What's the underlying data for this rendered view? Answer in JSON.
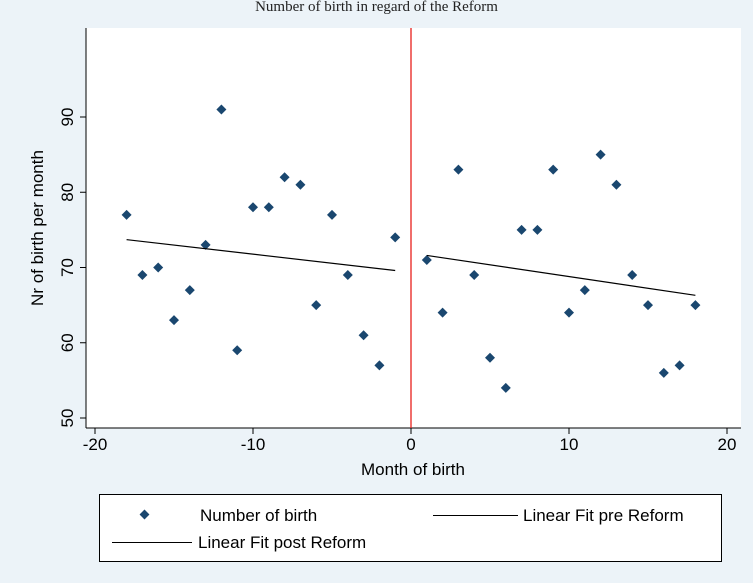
{
  "page": {
    "title": "Number of birth in regard of the Reform"
  },
  "colors": {
    "background": "#ecf3f8",
    "plot_area": "#ffffff",
    "markers": "#1a476f",
    "fit_lines": "#000000",
    "reform_line": "#e8201c"
  },
  "chart_data": {
    "type": "scatter",
    "title": "",
    "xlabel": "Month of birth",
    "ylabel": "Nr of birth per month",
    "xlim": [
      -21,
      21
    ],
    "ylim": [
      49,
      103
    ],
    "xticks": [
      -20,
      -10,
      0,
      10,
      20
    ],
    "yticks": [
      50,
      60,
      70,
      80,
      90
    ],
    "grid": false,
    "reference_line": {
      "x": 0
    },
    "series": [
      {
        "name": "Number of birth",
        "kind": "markers",
        "marker": "diamond",
        "x": [
          -18,
          -17,
          -16,
          -15,
          -14,
          -13,
          -12,
          -11,
          -10,
          -9,
          -8,
          -7,
          -6,
          -5,
          -4,
          -3,
          -2,
          -1,
          1,
          2,
          3,
          4,
          5,
          6,
          7,
          8,
          9,
          10,
          11,
          12,
          13,
          14,
          15,
          16,
          17,
          18
        ],
        "y": [
          77,
          69,
          70,
          63,
          67,
          73,
          91,
          59,
          78,
          78,
          82,
          81,
          65,
          77,
          69,
          61,
          57,
          74,
          71,
          64,
          83,
          69,
          58,
          54,
          75,
          75,
          83,
          64,
          67,
          85,
          81,
          69,
          65,
          56,
          57,
          65
        ]
      },
      {
        "name": "Linear Fit pre Reform",
        "kind": "line",
        "x": [
          -18,
          -1
        ],
        "y": [
          73.7,
          69.6
        ]
      },
      {
        "name": "Linear Fit post Reform",
        "kind": "line",
        "x": [
          1,
          18
        ],
        "y": [
          71.6,
          66.3
        ]
      }
    ],
    "legend": {
      "position": "bottom",
      "entries": [
        "Number of birth",
        "Linear Fit pre Reform",
        "Linear Fit post Reform"
      ]
    }
  }
}
